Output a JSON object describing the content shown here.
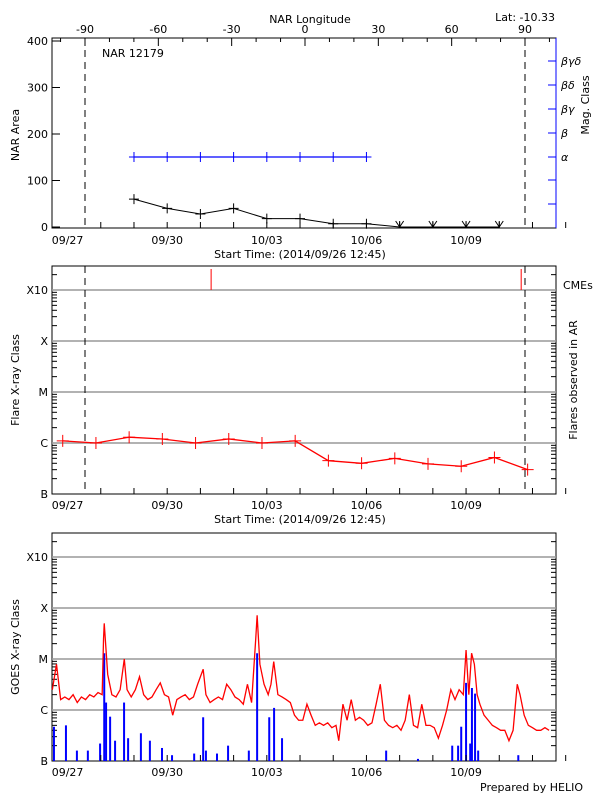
{
  "header": {
    "lat_label": "Lat: -10.33",
    "region_label": "NAR 12179",
    "prepared_by": "Prepared by HELIO"
  },
  "colors": {
    "area": "#000000",
    "mag_class": "#0000ff",
    "flare": "#ff0000",
    "cme": "#ff0000",
    "goes_long": "#ff0000",
    "goes_short": "#0000ff",
    "grid": "#999999"
  },
  "chart_data": [
    {
      "type": "line",
      "title": "NAR 12179",
      "xlabel": "Start Time: (2014/09/26 12:45)",
      "ylabel": "NAR Area",
      "xlim": [
        "09/26 12:45",
        "10/11 17:00"
      ],
      "xticks": [
        "09/27",
        "09/30",
        "10/03",
        "10/06",
        "10/09"
      ],
      "ylim": [
        0,
        400
      ],
      "yticks": [
        "0",
        "100",
        "200",
        "300",
        "400"
      ],
      "top_axis": {
        "label": "NAR Longitude",
        "ticks": [
          "-90",
          "-60",
          "-30",
          "0",
          "30",
          "60",
          "90"
        ]
      },
      "limb_longitudes": [
        -90,
        90
      ],
      "right_axis": {
        "label": "Mag. Class",
        "ticks": [
          "α",
          "β",
          "βγ",
          "βδ",
          "βγδ"
        ]
      },
      "area": [
        [
          "09/29 00:00",
          60
        ],
        [
          "09/30 00:00",
          40
        ],
        [
          "10/01 00:00",
          28
        ],
        [
          "10/02 00:00",
          40
        ],
        [
          "10/03 00:00",
          18
        ],
        [
          "10/04 00:00",
          18
        ],
        [
          "10/05 00:00",
          7
        ],
        [
          "10/06 00:00",
          7
        ],
        [
          "10/07 00:00",
          0
        ],
        [
          "10/08 00:00",
          0
        ],
        [
          "10/09 00:00",
          0
        ],
        [
          "10/10 00:00",
          0
        ]
      ],
      "mag_class": [
        [
          "09/29 00:00",
          "α"
        ],
        [
          "09/30 00:00",
          "α"
        ],
        [
          "10/01 00:00",
          "α"
        ],
        [
          "10/02 00:00",
          "α"
        ],
        [
          "10/03 00:00",
          "α"
        ],
        [
          "10/04 00:00",
          "α"
        ],
        [
          "10/05 00:00",
          "α"
        ],
        [
          "10/06 00:00",
          "α"
        ]
      ]
    },
    {
      "type": "line",
      "xlabel": "Start Time: (2014/09/26 12:45)",
      "ylabel": "Flare X-ray Class",
      "right_label": "Flares observed in AR",
      "cme_label": "CMEs",
      "y_scale": "log",
      "xticks": [
        "09/27",
        "09/30",
        "10/03",
        "10/06",
        "10/09"
      ],
      "yticks": [
        "B",
        "C",
        "M",
        "X",
        "X10"
      ],
      "grid": true,
      "flares": [
        [
          "09/26 20:30",
          "C1.1"
        ],
        [
          "09/27 20:30",
          "C1.0"
        ],
        [
          "09/28 20:30",
          "C1.3"
        ],
        [
          "09/29 20:30",
          "C1.2"
        ],
        [
          "09/30 20:30",
          "C1.0"
        ],
        [
          "10/01 20:30",
          "C1.2"
        ],
        [
          "10/02 20:30",
          "C1.0"
        ],
        [
          "10/03 20:30",
          "C1.1"
        ],
        [
          "10/04 20:30",
          "B4.5"
        ],
        [
          "10/05 20:30",
          "B4.0"
        ],
        [
          "10/06 20:30",
          "B5.0"
        ],
        [
          "10/07 20:30",
          "B3.9"
        ],
        [
          "10/08 20:30",
          "B3.5"
        ],
        [
          "10/09 20:30",
          "B5.2"
        ],
        [
          "10/10 20:30",
          "B3.0"
        ]
      ],
      "cmes": [
        "10/01 07:45",
        "10/10 15:50"
      ]
    },
    {
      "type": "line",
      "ylabel": "GOES X-ray Class",
      "y_scale": "log",
      "xticks": [
        "09/27",
        "09/30",
        "10/03",
        "10/06",
        "10/09"
      ],
      "yticks": [
        "B",
        "C",
        "M",
        "X",
        "X10"
      ],
      "grid": true,
      "long_channel": [
        [
          "09/26 13:00",
          "C2.5"
        ],
        [
          "09/26 16:00",
          "C7.9"
        ],
        [
          "09/26 19:00",
          "C1.6"
        ],
        [
          "09/26 22:00",
          "C1.8"
        ],
        [
          "09/27 01:00",
          "C1.6"
        ],
        [
          "09/27 04:00",
          "C2.0"
        ],
        [
          "09/27 07:00",
          "C1.4"
        ],
        [
          "09/27 10:00",
          "C1.8"
        ],
        [
          "09/27 13:00",
          "C1.6"
        ],
        [
          "09/27 16:00",
          "C2.0"
        ],
        [
          "09/27 19:00",
          "C1.8"
        ],
        [
          "09/27 22:00",
          "C2.2"
        ],
        [
          "09/28 01:00",
          "C2.0"
        ],
        [
          "09/28 02:00",
          "M2.5"
        ],
        [
          "09/28 02:30",
          "M5.0"
        ],
        [
          "09/28 05:00",
          "C5.0"
        ],
        [
          "09/28 08:00",
          "C2.0"
        ],
        [
          "09/28 11:00",
          "C1.8"
        ],
        [
          "09/28 14:00",
          "C2.5"
        ],
        [
          "09/28 17:00",
          "M1.0"
        ],
        [
          "09/28 19:00",
          "C2.5"
        ],
        [
          "09/28 22:00",
          "C1.8"
        ],
        [
          "09/29 01:00",
          "C2.5"
        ],
        [
          "09/29 04:00",
          "C4.5"
        ],
        [
          "09/29 07:00",
          "C2.0"
        ],
        [
          "09/29 10:00",
          "C1.6"
        ],
        [
          "09/29 13:00",
          "C1.8"
        ],
        [
          "09/29 16:00",
          "C2.5"
        ],
        [
          "09/29 19:00",
          "C3.4"
        ],
        [
          "09/29 22:00",
          "C2.0"
        ],
        [
          "09/30 01:00",
          "C1.8"
        ],
        [
          "09/30 04:00",
          "B7.9"
        ],
        [
          "09/30 07:00",
          "C1.6"
        ],
        [
          "09/30 10:00",
          "C1.8"
        ],
        [
          "09/30 13:00",
          "C2.0"
        ],
        [
          "09/30 16:00",
          "C1.6"
        ],
        [
          "09/30 19:00",
          "C1.8"
        ],
        [
          "09/30 22:00",
          "C3.2"
        ],
        [
          "10/01 02:00",
          "C6.3"
        ],
        [
          "10/01 04:00",
          "C2.0"
        ],
        [
          "10/01 07:00",
          "C1.4"
        ],
        [
          "10/01 10:00",
          "C1.6"
        ],
        [
          "10/01 13:00",
          "C1.8"
        ],
        [
          "10/01 16:00",
          "C1.6"
        ],
        [
          "10/01 19:00",
          "C3.2"
        ],
        [
          "10/01 22:00",
          "C2.5"
        ],
        [
          "10/02 01:00",
          "C1.8"
        ],
        [
          "10/02 04:00",
          "C1.6"
        ],
        [
          "10/02 07:00",
          "C1.3"
        ],
        [
          "10/02 10:00",
          "C3.2"
        ],
        [
          "10/02 13:00",
          "C1.4"
        ],
        [
          "10/02 16:00",
          "M2.5"
        ],
        [
          "10/02 17:00",
          "M7.2"
        ],
        [
          "10/02 19:00",
          "C7.9"
        ],
        [
          "10/02 22:00",
          "C3.2"
        ],
        [
          "10/03 01:00",
          "C2.0"
        ],
        [
          "10/03 03:00",
          "C3.2"
        ],
        [
          "10/03 05:00",
          "C8.9"
        ],
        [
          "10/03 08:00",
          "C2.0"
        ],
        [
          "10/03 11:00",
          "C1.8"
        ],
        [
          "10/03 14:00",
          "C1.6"
        ],
        [
          "10/03 17:00",
          "C1.4"
        ],
        [
          "10/03 20:00",
          "B7.9"
        ],
        [
          "10/03 23:00",
          "B6.3"
        ],
        [
          "10/04 02:00",
          "B6.3"
        ],
        [
          "10/04 05:00",
          "C1.3"
        ],
        [
          "10/04 08:00",
          "B7.9"
        ],
        [
          "10/04 11:00",
          "B5.0"
        ],
        [
          "10/04 14:00",
          "B5.6"
        ],
        [
          "10/04 17:00",
          "B5.0"
        ],
        [
          "10/04 20:00",
          "B5.6"
        ],
        [
          "10/04 23:00",
          "B4.5"
        ],
        [
          "10/05 02:00",
          "B5.0"
        ],
        [
          "10/05 04:00",
          "B2.5"
        ],
        [
          "10/05 07:00",
          "C1.3"
        ],
        [
          "10/05 10:00",
          "B6.3"
        ],
        [
          "10/05 13:00",
          "C1.6"
        ],
        [
          "10/05 16:00",
          "B6.3"
        ],
        [
          "10/05 19:00",
          "B7.2"
        ],
        [
          "10/05 22:00",
          "B6.3"
        ],
        [
          "10/06 01:00",
          "B5.0"
        ],
        [
          "10/06 04:00",
          "B5.6"
        ],
        [
          "10/06 07:00",
          "C1.3"
        ],
        [
          "10/06 10:00",
          "C3.2"
        ],
        [
          "10/06 13:00",
          "B6.3"
        ],
        [
          "10/06 16:00",
          "B5.0"
        ],
        [
          "10/06 19:00",
          "B4.5"
        ],
        [
          "10/06 22:00",
          "B5.0"
        ],
        [
          "10/07 01:00",
          "B4.0"
        ],
        [
          "10/07 04:00",
          "B6.3"
        ],
        [
          "10/07 07:00",
          "C2.0"
        ],
        [
          "10/07 10:00",
          "B5.0"
        ],
        [
          "10/07 13:00",
          "B4.5"
        ],
        [
          "10/07 16:00",
          "C1.3"
        ],
        [
          "10/07 19:00",
          "B5.0"
        ],
        [
          "10/07 22:00",
          "B5.0"
        ],
        [
          "10/08 01:00",
          "B4.5"
        ],
        [
          "10/08 04:00",
          "B2.8"
        ],
        [
          "10/08 07:00",
          "B5.0"
        ],
        [
          "10/08 10:00",
          "C1.0"
        ],
        [
          "10/08 13:00",
          "C2.5"
        ],
        [
          "10/08 16:00",
          "C1.6"
        ],
        [
          "10/08 19:00",
          "C2.5"
        ],
        [
          "10/08 22:00",
          "C2.0"
        ],
        [
          "10/09 00:00",
          "M1.5"
        ],
        [
          "10/09 02:00",
          "C2.0"
        ],
        [
          "10/09 04:00",
          "M1.3"
        ],
        [
          "10/09 06:00",
          "C7.9"
        ],
        [
          "10/09 08:00",
          "C2.0"
        ],
        [
          "10/09 10:00",
          "C1.3"
        ],
        [
          "10/09 13:00",
          "B7.9"
        ],
        [
          "10/09 16:00",
          "B6.3"
        ],
        [
          "10/09 19:00",
          "B5.0"
        ],
        [
          "10/09 22:00",
          "B4.5"
        ],
        [
          "10/10 01:00",
          "B4.0"
        ],
        [
          "10/10 04:00",
          "B4.0"
        ],
        [
          "10/10 07:00",
          "B2.5"
        ],
        [
          "10/10 10:00",
          "B4.0"
        ],
        [
          "10/10 13:00",
          "C3.2"
        ],
        [
          "10/10 15:00",
          "C2.0"
        ],
        [
          "10/10 18:00",
          "B7.9"
        ],
        [
          "10/10 21:00",
          "B5.0"
        ],
        [
          "10/11 00:00",
          "B4.5"
        ],
        [
          "10/11 03:00",
          "B4.0"
        ],
        [
          "10/11 06:00",
          "B4.0"
        ],
        [
          "10/11 09:00",
          "B4.5"
        ],
        [
          "10/11 12:00",
          "B4.0"
        ]
      ],
      "short_channel": [
        [
          "09/26 14:10",
          "B4.7"
        ],
        [
          "09/26 22:50",
          "B5.0"
        ],
        [
          "09/27 06:45",
          "B1.6"
        ],
        [
          "09/27 14:40",
          "B1.6"
        ],
        [
          "09/27 23:30",
          "B2.2"
        ],
        [
          "09/28 02:30",
          "M1.3"
        ],
        [
          "09/28 03:50",
          "C1.4"
        ],
        [
          "09/28 06:45",
          "B7.4"
        ],
        [
          "09/28 10:20",
          "B2.5"
        ],
        [
          "09/28 16:50",
          "C1.4"
        ],
        [
          "09/28 19:45",
          "B2.8"
        ],
        [
          "09/29 05:00",
          "B3.5"
        ],
        [
          "09/29 11:30",
          "B2.5"
        ],
        [
          "09/29 20:15",
          "B1.8"
        ],
        [
          "09/30 03:30",
          "B1.3"
        ],
        [
          "09/30 19:30",
          "B1.4"
        ],
        [
          "10/01 02:00",
          "B7.2"
        ],
        [
          "10/01 04:00",
          "B1.6"
        ],
        [
          "10/01 12:00",
          "B1.4"
        ],
        [
          "10/01 20:00",
          "B2.0"
        ],
        [
          "10/02 11:00",
          "B1.6"
        ],
        [
          "10/02 17:00",
          "M1.3"
        ],
        [
          "10/03 01:45",
          "B7.2"
        ],
        [
          "10/03 05:15",
          "C1.1"
        ],
        [
          "10/03 11:00",
          "B2.8"
        ],
        [
          "10/06 14:15",
          "B1.6"
        ],
        [
          "10/07 13:15",
          "B1.1"
        ],
        [
          "10/08 14:00",
          "B2.0"
        ],
        [
          "10/08 18:15",
          "B2.0"
        ],
        [
          "10/08 20:30",
          "B4.7"
        ],
        [
          "10/09 00:00",
          "C3.4"
        ],
        [
          "10/09 03:00",
          "B2.2"
        ],
        [
          "10/09 04:15",
          "C2.7"
        ],
        [
          "10/09 06:30",
          "C2.1"
        ],
        [
          "10/09 08:45",
          "B1.6"
        ],
        [
          "10/10 13:45",
          "B1.3"
        ]
      ]
    }
  ]
}
